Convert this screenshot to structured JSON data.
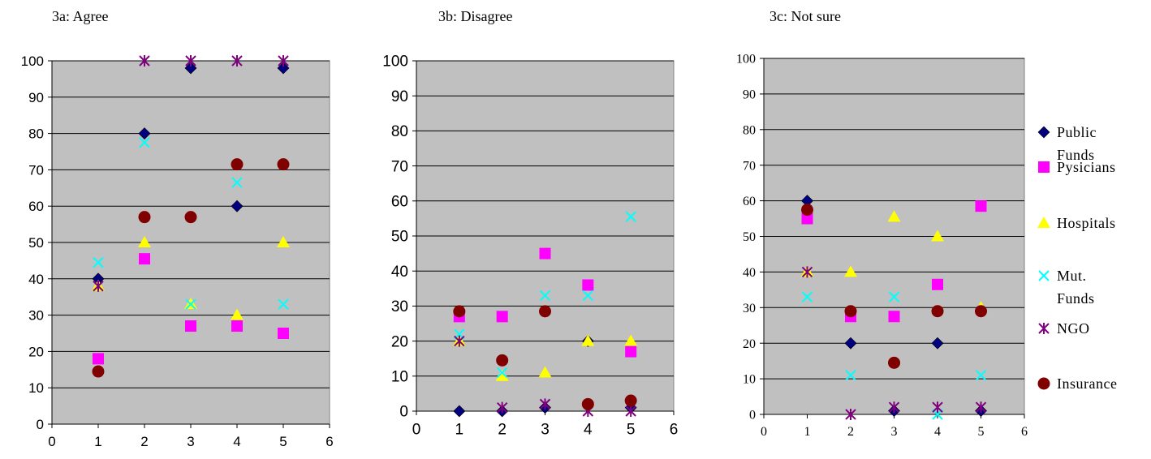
{
  "panels": [
    {
      "title": "3a: Agree"
    },
    {
      "title": "3b: Disagree"
    },
    {
      "title": "3c: Not sure"
    }
  ],
  "legend": {
    "items": [
      {
        "key": "public_funds",
        "lines": [
          "Public",
          "Funds"
        ]
      },
      {
        "key": "physicians",
        "lines": [
          "Pysicians"
        ]
      },
      {
        "key": "hospitals",
        "lines": [
          "Hospitals"
        ]
      },
      {
        "key": "mut_funds",
        "lines": [
          "Mut.",
          "Funds"
        ]
      },
      {
        "key": "ngo",
        "lines": [
          "NGO"
        ]
      },
      {
        "key": "insurance",
        "lines": [
          "Insurance"
        ]
      }
    ]
  },
  "chart_data": [
    {
      "type": "scatter",
      "title": "3a: Agree",
      "xlim": [
        0,
        6
      ],
      "ylim": [
        0,
        100
      ],
      "xticks": [
        0,
        1,
        2,
        3,
        4,
        5,
        6
      ],
      "yticks": [
        0,
        10,
        20,
        30,
        40,
        50,
        60,
        70,
        80,
        90,
        100
      ],
      "grid": "horizontal",
      "plot_bg": "#c0c0c0",
      "series": [
        {
          "name": "Public Funds",
          "marker": "diamond",
          "color": "#000080",
          "x": [
            1,
            2,
            3,
            4,
            5
          ],
          "y": [
            40,
            80,
            98,
            60,
            98
          ]
        },
        {
          "name": "Pysicians",
          "marker": "square",
          "color": "#ff00ff",
          "x": [
            1,
            2,
            3,
            4,
            5
          ],
          "y": [
            18,
            45.5,
            27,
            27,
            25
          ]
        },
        {
          "name": "Hospitals",
          "marker": "triangle",
          "color": "#ffff00",
          "x": [
            1,
            2,
            3,
            4,
            5
          ],
          "y": [
            38,
            50,
            33,
            30,
            50
          ]
        },
        {
          "name": "Mut. Funds",
          "marker": "x",
          "color": "#00ffff",
          "x": [
            1,
            2,
            3,
            4,
            5
          ],
          "y": [
            44.5,
            77.5,
            33,
            66.5,
            33
          ]
        },
        {
          "name": "NGO",
          "marker": "star",
          "color": "#800080",
          "x": [
            1,
            2,
            3,
            4,
            5
          ],
          "y": [
            38,
            100,
            100,
            100,
            100
          ]
        },
        {
          "name": "Insurance",
          "marker": "circle",
          "color": "#800000",
          "x": [
            1,
            2,
            3,
            4,
            5
          ],
          "y": [
            14.5,
            57,
            57,
            71.5,
            71.5
          ]
        }
      ]
    },
    {
      "type": "scatter",
      "title": "3b: Disagree",
      "xlim": [
        0,
        6
      ],
      "ylim": [
        0,
        100
      ],
      "xticks": [
        0,
        1,
        2,
        3,
        4,
        5,
        6
      ],
      "yticks": [
        0,
        10,
        20,
        30,
        40,
        50,
        60,
        70,
        80,
        90,
        100
      ],
      "grid": "horizontal",
      "plot_bg": "#c0c0c0",
      "series": [
        {
          "name": "Public Funds",
          "marker": "diamond",
          "color": "#000080",
          "x": [
            1,
            2,
            3,
            4,
            5
          ],
          "y": [
            0,
            0,
            1,
            20,
            1
          ]
        },
        {
          "name": "Pysicians",
          "marker": "square",
          "color": "#ff00ff",
          "x": [
            1,
            2,
            3,
            4,
            5
          ],
          "y": [
            27,
            27,
            45,
            36,
            17
          ]
        },
        {
          "name": "Hospitals",
          "marker": "triangle",
          "color": "#ffff00",
          "x": [
            1,
            2,
            3,
            4,
            5
          ],
          "y": [
            20,
            10,
            11,
            20,
            20
          ]
        },
        {
          "name": "Mut. Funds",
          "marker": "x",
          "color": "#00ffff",
          "x": [
            1,
            2,
            3,
            4,
            5
          ],
          "y": [
            22,
            11,
            33,
            33,
            55.5
          ]
        },
        {
          "name": "NGO",
          "marker": "star",
          "color": "#800080",
          "x": [
            1,
            2,
            3,
            4,
            5
          ],
          "y": [
            20,
            1,
            2,
            0,
            0
          ]
        },
        {
          "name": "Insurance",
          "marker": "circle",
          "color": "#800000",
          "x": [
            1,
            2,
            3,
            4,
            5
          ],
          "y": [
            28.5,
            14.5,
            28.5,
            2,
            3
          ]
        }
      ]
    },
    {
      "type": "scatter",
      "title": "3c: Not sure",
      "xlim": [
        0,
        6
      ],
      "ylim": [
        0,
        100
      ],
      "xticks": [
        0,
        1,
        2,
        3,
        4,
        5,
        6
      ],
      "yticks": [
        0,
        10,
        20,
        30,
        40,
        50,
        60,
        70,
        80,
        90,
        100
      ],
      "grid": "horizontal",
      "plot_bg": "#c0c0c0",
      "legend_position": "right",
      "series": [
        {
          "name": "Public Funds",
          "marker": "diamond",
          "color": "#000080",
          "x": [
            1,
            2,
            3,
            4,
            5
          ],
          "y": [
            60,
            20,
            1,
            20,
            1
          ]
        },
        {
          "name": "Pysicians",
          "marker": "square",
          "color": "#ff00ff",
          "x": [
            1,
            2,
            3,
            4,
            5
          ],
          "y": [
            55,
            27.5,
            27.5,
            36.5,
            58.5
          ]
        },
        {
          "name": "Hospitals",
          "marker": "triangle",
          "color": "#ffff00",
          "x": [
            1,
            2,
            3,
            4,
            5
          ],
          "y": [
            40,
            40,
            55.5,
            50,
            30
          ]
        },
        {
          "name": "Mut. Funds",
          "marker": "x",
          "color": "#00ffff",
          "x": [
            1,
            2,
            3,
            4,
            5
          ],
          "y": [
            33,
            11,
            33,
            0,
            11
          ]
        },
        {
          "name": "NGO",
          "marker": "star",
          "color": "#800080",
          "x": [
            1,
            2,
            3,
            4,
            5
          ],
          "y": [
            40,
            0,
            2,
            2,
            2
          ]
        },
        {
          "name": "Insurance",
          "marker": "circle",
          "color": "#800000",
          "x": [
            1,
            2,
            3,
            4,
            5
          ],
          "y": [
            57.5,
            29,
            14.5,
            29,
            29
          ]
        }
      ]
    }
  ]
}
